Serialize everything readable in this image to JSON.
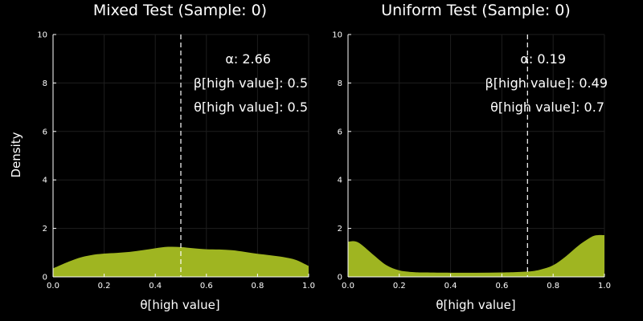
{
  "colors": {
    "background": "#000000",
    "fill": "#9fb521",
    "text": "#ffffff",
    "grid": "#1e1e1e",
    "dashed_line": "#ffffff"
  },
  "chart_data": [
    {
      "type": "area",
      "title": "Mixed Test (Sample: 0)",
      "xlabel": "θ[high value]",
      "ylabel": "Density",
      "xlim": [
        0,
        1
      ],
      "ylim": [
        0,
        10
      ],
      "xticks": [
        "0.0",
        "0.2",
        "0.4",
        "0.6",
        "0.8",
        "1.0"
      ],
      "yticks": [
        "0",
        "2",
        "4",
        "6",
        "8",
        "10"
      ],
      "grid": true,
      "vline_x": 0.5,
      "annotations": [
        "α: 2.66",
        "β[high value]: 0.5",
        "θ[high value]: 0.5"
      ],
      "x": [
        0.0,
        0.05,
        0.1,
        0.15,
        0.2,
        0.25,
        0.3,
        0.35,
        0.4,
        0.45,
        0.5,
        0.55,
        0.6,
        0.65,
        0.7,
        0.75,
        0.8,
        0.85,
        0.9,
        0.95,
        1.0
      ],
      "y": [
        0.35,
        0.58,
        0.78,
        0.9,
        0.96,
        0.99,
        1.03,
        1.1,
        1.18,
        1.24,
        1.23,
        1.18,
        1.14,
        1.13,
        1.1,
        1.03,
        0.95,
        0.89,
        0.82,
        0.7,
        0.45
      ]
    },
    {
      "type": "area",
      "title": "Uniform Test (Sample: 0)",
      "xlabel": "θ[high value]",
      "ylabel": "",
      "xlim": [
        0,
        1
      ],
      "ylim": [
        0,
        10
      ],
      "xticks": [
        "0.0",
        "0.2",
        "0.4",
        "0.6",
        "0.8",
        "1.0"
      ],
      "yticks": [
        "0",
        "2",
        "4",
        "6",
        "8",
        "10"
      ],
      "grid": true,
      "vline_x": 0.7,
      "annotations": [
        "α: 0.19",
        "β[high value]: 0.49",
        "θ[high value]: 0.7"
      ],
      "x": [
        0.0,
        0.025,
        0.05,
        0.1,
        0.15,
        0.2,
        0.25,
        0.3,
        0.4,
        0.5,
        0.6,
        0.7,
        0.75,
        0.8,
        0.85,
        0.9,
        0.95,
        0.975,
        1.0
      ],
      "y": [
        1.45,
        1.47,
        1.35,
        0.9,
        0.48,
        0.27,
        0.2,
        0.18,
        0.17,
        0.17,
        0.18,
        0.22,
        0.3,
        0.48,
        0.85,
        1.3,
        1.65,
        1.72,
        1.72
      ]
    }
  ]
}
